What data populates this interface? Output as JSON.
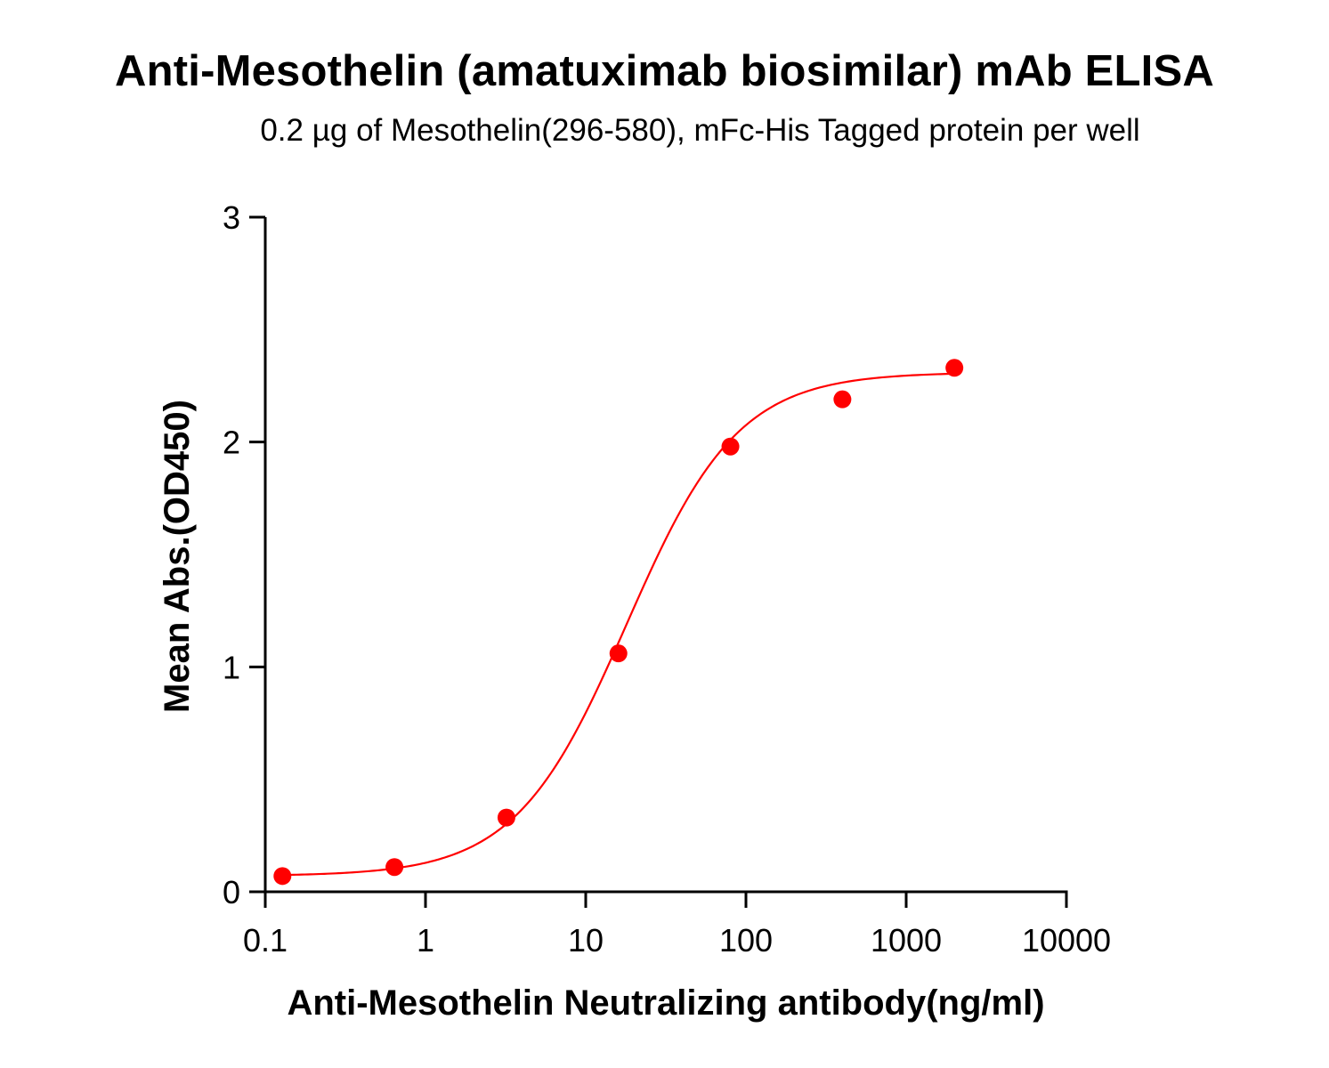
{
  "chart_data": {
    "type": "scatter",
    "title": "Anti-Mesothelin (amatuximab biosimilar) mAb ELISA",
    "subtitle": "0.2 µg of Mesothelin(296-580), mFc-His Tagged protein per well",
    "xlabel": "Anti-Mesothelin Neutralizing antibody(ng/ml)",
    "ylabel": "Mean Abs.(OD450)",
    "x_scale": "log",
    "xlim": [
      0.1,
      10000
    ],
    "ylim": [
      0,
      3
    ],
    "x_ticks": [
      0.1,
      1,
      10,
      100,
      1000,
      10000
    ],
    "x_tick_labels": [
      "0.1",
      "1",
      "10",
      "100",
      "1000",
      "10000"
    ],
    "y_ticks": [
      0,
      1,
      2,
      3
    ],
    "y_tick_labels": [
      "0",
      "1",
      "2",
      "3"
    ],
    "grid": false,
    "legend": "none",
    "series": [
      {
        "color": "#ff0000",
        "marker": "circle",
        "x": [
          0.128,
          0.64,
          3.2,
          16,
          80,
          400,
          2000
        ],
        "y": [
          0.07,
          0.11,
          0.33,
          1.06,
          1.98,
          2.19,
          2.33
        ]
      }
    ],
    "fit_curve": {
      "color": "#ff0000",
      "model": "4PL",
      "bottom": 0.07,
      "top": 2.31,
      "ec50": 18,
      "hill": 1.25
    }
  }
}
